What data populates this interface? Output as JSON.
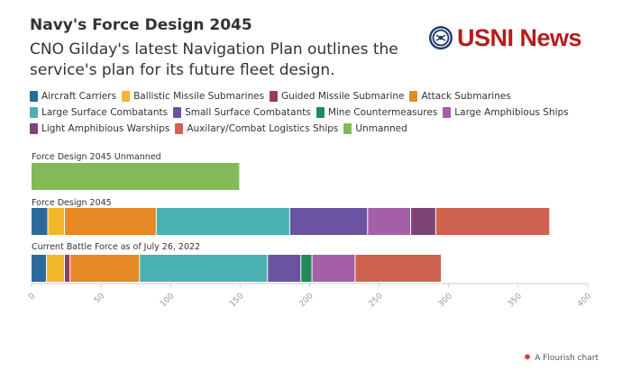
{
  "title": "Navy's Force Design 2045",
  "subtitle": "CNO Gilday's latest Navigation Plan outlines the service's plan for its future fleet design.",
  "logo": {
    "text": "USNI News"
  },
  "footer": {
    "credit": "A Flourish chart"
  },
  "chart_data": {
    "type": "bar",
    "orientation": "horizontal",
    "stacked": true,
    "xlim": [
      0,
      400
    ],
    "x_ticks": [
      "0",
      "50",
      "100",
      "150",
      "200",
      "250",
      "300",
      "350",
      "400"
    ],
    "groups": [
      "Force Design 2045 Unmanned",
      "Force Design 2045",
      "Current Battle Force as of July 26, 2022"
    ],
    "series": [
      {
        "name": "Aircraft Carriers",
        "color": "#2c6a9e",
        "values": [
          0,
          12,
          11
        ]
      },
      {
        "name": "Ballistic Missile Submarines",
        "color": "#f2b82a",
        "values": [
          0,
          12,
          13
        ]
      },
      {
        "name": "Guided Missile Submarine",
        "color": "#963b64",
        "values": [
          0,
          0,
          4
        ]
      },
      {
        "name": "Attack Submarines",
        "color": "#e68a25",
        "values": [
          0,
          66,
          50
        ]
      },
      {
        "name": "Large Surface Combatants",
        "color": "#49b1b2",
        "values": [
          0,
          96,
          92
        ]
      },
      {
        "name": "Small Surface Combatants",
        "color": "#6a54a1",
        "values": [
          0,
          56,
          24
        ]
      },
      {
        "name": "Mine Countermeasures",
        "color": "#23885a",
        "values": [
          0,
          0,
          8
        ]
      },
      {
        "name": "Large Amphibious Ships",
        "color": "#a55fa6",
        "values": [
          0,
          31,
          31
        ]
      },
      {
        "name": "Light Amphibious Warships",
        "color": "#7d4476",
        "values": [
          0,
          18,
          0
        ]
      },
      {
        "name": "Auxilary/Combat Logistics Ships",
        "color": "#d06250",
        "values": [
          0,
          82,
          62
        ]
      },
      {
        "name": "Unmanned",
        "color": "#84b957",
        "values": [
          150,
          0,
          0
        ]
      }
    ]
  }
}
